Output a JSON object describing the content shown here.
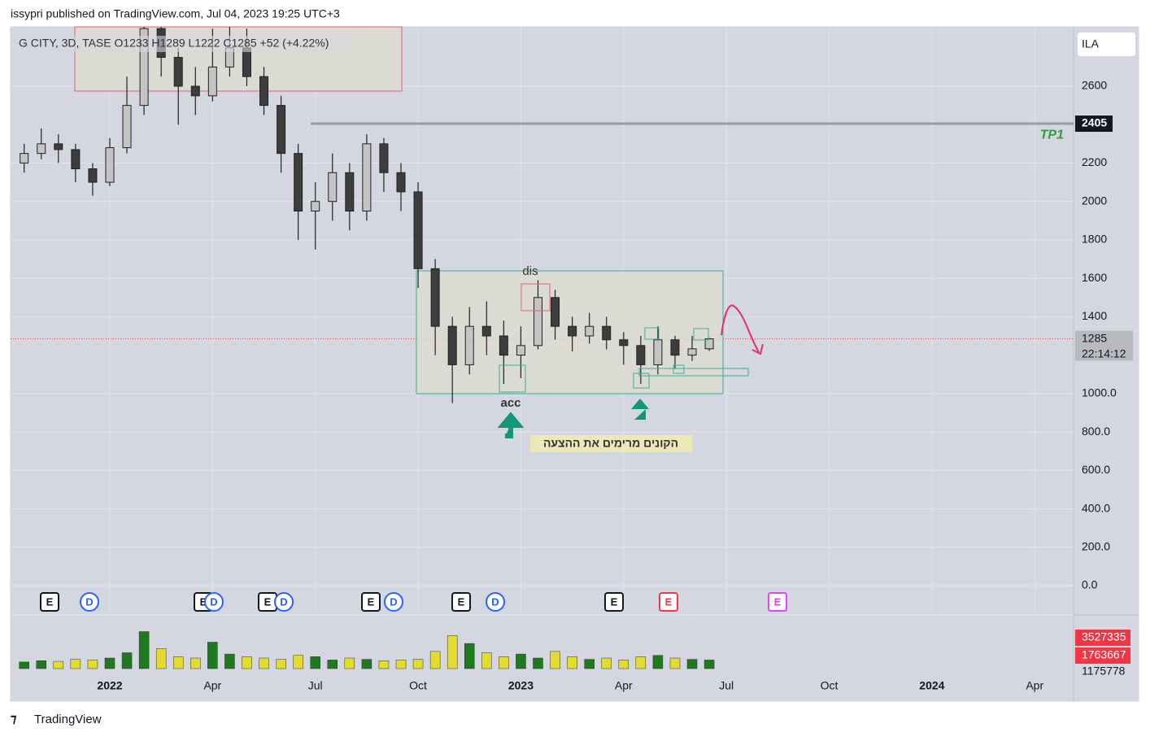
{
  "header": "issypri published on TradingView.com, Jul 04, 2023 19:25 UTC+3",
  "footer": "TradingView",
  "chart_data": {
    "type": "candlestick",
    "legend_text": "G CITY, 3D, TASE  O1233  H1289  L1222  C1285  +52 (+4.22%)",
    "currency": "ILA",
    "categories": [
      null,
      null,
      null,
      null,
      null,
      null,
      "2022",
      null,
      null,
      null,
      null,
      null,
      "Apr",
      null,
      null,
      null,
      null,
      null,
      "Jul",
      null,
      null,
      null,
      null,
      null,
      "Oct",
      null,
      null,
      null,
      null,
      null,
      "2023",
      null,
      null,
      null,
      null,
      null,
      "Apr",
      null,
      null,
      null,
      null,
      null,
      "Jul",
      null,
      null,
      null,
      null,
      null,
      "Oct",
      null,
      null,
      null,
      null,
      null,
      "2024",
      null,
      null,
      null,
      null,
      null,
      "Apr",
      null
    ],
    "open": [
      null,
      2200,
      2250,
      2300,
      2270,
      2170,
      2100,
      2280,
      2500,
      2900,
      2750,
      2600,
      2550,
      2700,
      2800,
      2650,
      2500,
      2250,
      1950,
      2000,
      2150,
      1950,
      2300,
      2150,
      2050,
      1650,
      1350,
      1150,
      1350,
      1300,
      1200,
      1250,
      1500,
      1350,
      1300,
      1350,
      1280,
      1250,
      1150,
      1280,
      1200,
      1233,
      null,
      null,
      null,
      null,
      null,
      null,
      null,
      null,
      null,
      null,
      null,
      null,
      null,
      null,
      null,
      null,
      null,
      null,
      null,
      null
    ],
    "high": [
      null,
      2300,
      2380,
      2350,
      2300,
      2200,
      2330,
      2650,
      3000,
      3000,
      2800,
      2700,
      2900,
      3000,
      2900,
      2700,
      2550,
      2300,
      2100,
      2250,
      2200,
      2350,
      2330,
      2200,
      2100,
      1700,
      1400,
      1450,
      1480,
      1380,
      1350,
      1590,
      1540,
      1400,
      1420,
      1400,
      1320,
      1300,
      1350,
      1300,
      1300,
      1289,
      null,
      null,
      null,
      null,
      null,
      null,
      null,
      null,
      null,
      null,
      null,
      null,
      null,
      null,
      null,
      null,
      null,
      null,
      null,
      null
    ],
    "low": [
      null,
      2150,
      2220,
      2200,
      2100,
      2030,
      2080,
      2250,
      2450,
      2650,
      2400,
      2450,
      2520,
      2650,
      2600,
      2450,
      2150,
      1800,
      1750,
      1900,
      1850,
      1900,
      2050,
      1950,
      1550,
      1200,
      950,
      1100,
      1200,
      1050,
      1080,
      1230,
      1280,
      1220,
      1260,
      1230,
      1150,
      1050,
      1100,
      1130,
      1170,
      1222,
      null,
      null,
      null,
      null,
      null,
      null,
      null,
      null,
      null,
      null,
      null,
      null,
      null,
      null,
      null,
      null,
      null,
      null,
      null,
      null
    ],
    "close": [
      null,
      2250,
      2300,
      2270,
      2170,
      2100,
      2280,
      2500,
      2900,
      2750,
      2600,
      2550,
      2700,
      2800,
      2650,
      2500,
      2250,
      1950,
      2000,
      2150,
      1950,
      2300,
      2150,
      2050,
      1650,
      1350,
      1150,
      1350,
      1300,
      1200,
      1250,
      1500,
      1350,
      1300,
      1350,
      1280,
      1250,
      1150,
      1280,
      1200,
      1233,
      1285,
      null,
      null,
      null,
      null,
      null,
      null,
      null,
      null,
      null,
      null,
      null,
      null,
      null,
      null,
      null,
      null,
      null,
      null,
      null,
      null
    ],
    "volume": [
      null,
      500000,
      600000,
      550000,
      700000,
      650000,
      800000,
      1200000,
      2800000,
      1500000,
      900000,
      800000,
      2000000,
      1100000,
      900000,
      800000,
      700000,
      1000000,
      900000,
      650000,
      800000,
      700000,
      600000,
      650000,
      700000,
      1300000,
      2500000,
      1900000,
      1200000,
      900000,
      1100000,
      800000,
      1300000,
      900000,
      700000,
      800000,
      650000,
      900000,
      1000000,
      800000,
      700000,
      650000,
      null,
      null,
      null,
      null,
      null,
      null,
      null,
      null,
      null,
      null,
      null,
      null,
      null,
      null,
      null,
      null,
      null,
      null,
      null,
      null
    ],
    "up_color": "#c4c4c4",
    "down_color": "#3d3d3d",
    "volume_up_color": "#1f7a1f",
    "volume_down_color": "#e3dc2e",
    "volume_ylim": [
      0,
      4000000
    ],
    "volume_scale_labels": [
      "3527335",
      "1763667",
      "1175778"
    ],
    "ylim": [
      -148,
      2909
    ],
    "yticks": [
      {
        "value": 0,
        "label": "0.0"
      },
      {
        "value": 200,
        "label": "200.0"
      },
      {
        "value": 400,
        "label": "400.0"
      },
      {
        "value": 600,
        "label": "600.0"
      },
      {
        "value": 800,
        "label": "800.0"
      },
      {
        "value": 1000,
        "label": "1000.0"
      },
      1400,
      1600,
      1800,
      2000,
      2200,
      2600
    ],
    "grid": true,
    "hline": 2405,
    "hline_label": "TP1",
    "last_price": 1285,
    "countdown": "22:14:12",
    "annotations": {
      "dis": "dis",
      "acc": "acc",
      "note": "הקונים מרימים את ההצעה"
    },
    "events": [
      {
        "label": "E"
      },
      {
        "label": "D"
      },
      {
        "label": "E"
      },
      {
        "label": "D"
      },
      {
        "label": "E"
      },
      {
        "label": "D"
      },
      {
        "label": "E"
      },
      {
        "label": "D"
      },
      {
        "label": "E"
      },
      {
        "label": "D"
      },
      {
        "label": "E"
      },
      {
        "label": "E"
      },
      {
        "label": "E"
      }
    ]
  }
}
